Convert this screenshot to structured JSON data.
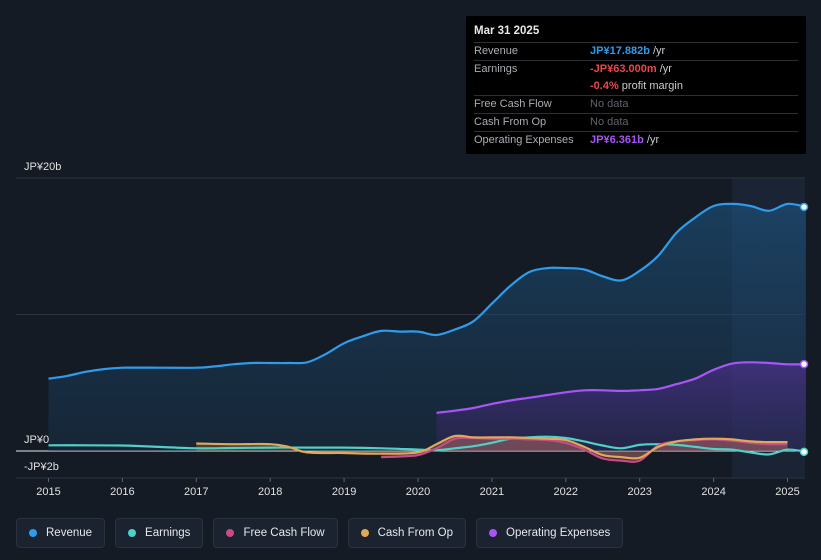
{
  "tooltip": {
    "date": "Mar 31 2025",
    "rows": [
      {
        "label": "Revenue",
        "value": "JP¥17.882b",
        "unit": " /yr",
        "color": "#2f9bea"
      },
      {
        "label": "Earnings",
        "value": "-JP¥63.000m",
        "unit": " /yr",
        "color": "#e8484a"
      },
      {
        "label": "",
        "value": "-0.4%",
        "unit": " profit margin",
        "color": "#e8484a"
      },
      {
        "label": "Free Cash Flow",
        "value": "No data",
        "unit": "",
        "color": ""
      },
      {
        "label": "Cash From Op",
        "value": "No data",
        "unit": "",
        "color": ""
      },
      {
        "label": "Operating Expenses",
        "value": "JP¥6.361b",
        "unit": " /yr",
        "color": "#a855f7"
      }
    ]
  },
  "legend": [
    {
      "label": "Revenue",
      "color": "#2f9bea"
    },
    {
      "label": "Earnings",
      "color": "#4fd1c5"
    },
    {
      "label": "Free Cash Flow",
      "color": "#c74b86"
    },
    {
      "label": "Cash From Op",
      "color": "#e0a95a"
    },
    {
      "label": "Operating Expenses",
      "color": "#a855f7"
    }
  ],
  "chart_data": {
    "type": "area",
    "title": "",
    "xlabel": "",
    "ylabel": "",
    "y_axis_labels": [
      {
        "label": "JP¥20b",
        "value": 20
      },
      {
        "label": "JP¥0",
        "value": 0
      },
      {
        "label": "-JP¥2b",
        "value": -2
      }
    ],
    "ylim": [
      -2,
      20
    ],
    "xlim": [
      2014.9,
      2025.25
    ],
    "x_ticks": [
      2015,
      2016,
      2017,
      2018,
      2019,
      2020,
      2021,
      2022,
      2023,
      2024,
      2025
    ],
    "forecast_band_start": 2024.25,
    "units": "JP¥ billions",
    "series": [
      {
        "name": "Revenue",
        "color": "#2f9bea",
        "fill": true,
        "points": [
          [
            2015.0,
            5.3
          ],
          [
            2015.25,
            5.5
          ],
          [
            2015.5,
            5.8
          ],
          [
            2015.75,
            6.0
          ],
          [
            2016.0,
            6.1
          ],
          [
            2016.5,
            6.1
          ],
          [
            2017.0,
            6.1
          ],
          [
            2017.25,
            6.2
          ],
          [
            2017.5,
            6.35
          ],
          [
            2017.75,
            6.45
          ],
          [
            2018.0,
            6.45
          ],
          [
            2018.25,
            6.45
          ],
          [
            2018.5,
            6.5
          ],
          [
            2018.75,
            7.1
          ],
          [
            2019.0,
            7.9
          ],
          [
            2019.25,
            8.4
          ],
          [
            2019.5,
            8.8
          ],
          [
            2019.75,
            8.75
          ],
          [
            2020.0,
            8.75
          ],
          [
            2020.25,
            8.5
          ],
          [
            2020.5,
            8.9
          ],
          [
            2020.75,
            9.5
          ],
          [
            2021.0,
            10.8
          ],
          [
            2021.25,
            12.1
          ],
          [
            2021.5,
            13.1
          ],
          [
            2021.75,
            13.4
          ],
          [
            2022.0,
            13.4
          ],
          [
            2022.25,
            13.3
          ],
          [
            2022.5,
            12.8
          ],
          [
            2022.75,
            12.5
          ],
          [
            2023.0,
            13.2
          ],
          [
            2023.25,
            14.3
          ],
          [
            2023.5,
            16.0
          ],
          [
            2023.75,
            17.1
          ],
          [
            2024.0,
            17.95
          ],
          [
            2024.25,
            18.1
          ],
          [
            2024.5,
            17.95
          ],
          [
            2024.75,
            17.6
          ],
          [
            2025.0,
            18.1
          ],
          [
            2025.25,
            17.88
          ]
        ]
      },
      {
        "name": "Operating Expenses",
        "color": "#a855f7",
        "fill": true,
        "points": [
          [
            2020.25,
            2.8
          ],
          [
            2020.5,
            2.95
          ],
          [
            2020.75,
            3.15
          ],
          [
            2021.0,
            3.45
          ],
          [
            2021.25,
            3.7
          ],
          [
            2021.5,
            3.9
          ],
          [
            2021.75,
            4.1
          ],
          [
            2022.0,
            4.3
          ],
          [
            2022.25,
            4.45
          ],
          [
            2022.5,
            4.45
          ],
          [
            2022.75,
            4.4
          ],
          [
            2023.0,
            4.45
          ],
          [
            2023.25,
            4.55
          ],
          [
            2023.5,
            4.9
          ],
          [
            2023.75,
            5.3
          ],
          [
            2024.0,
            5.95
          ],
          [
            2024.25,
            6.4
          ],
          [
            2024.5,
            6.5
          ],
          [
            2024.75,
            6.45
          ],
          [
            2025.0,
            6.35
          ],
          [
            2025.25,
            6.36
          ]
        ]
      },
      {
        "name": "Earnings",
        "color": "#4fd1c5",
        "fill": false,
        "points": [
          [
            2015.0,
            0.42
          ],
          [
            2015.5,
            0.42
          ],
          [
            2016.0,
            0.4
          ],
          [
            2016.5,
            0.3
          ],
          [
            2017.0,
            0.2
          ],
          [
            2017.5,
            0.22
          ],
          [
            2018.0,
            0.25
          ],
          [
            2018.5,
            0.25
          ],
          [
            2019.0,
            0.25
          ],
          [
            2019.5,
            0.2
          ],
          [
            2020.0,
            0.1
          ],
          [
            2020.25,
            0.05
          ],
          [
            2020.5,
            0.2
          ],
          [
            2020.75,
            0.35
          ],
          [
            2021.0,
            0.6
          ],
          [
            2021.25,
            0.9
          ],
          [
            2021.5,
            1.0
          ],
          [
            2021.75,
            1.05
          ],
          [
            2022.0,
            0.95
          ],
          [
            2022.25,
            0.7
          ],
          [
            2022.5,
            0.4
          ],
          [
            2022.75,
            0.2
          ],
          [
            2023.0,
            0.45
          ],
          [
            2023.25,
            0.5
          ],
          [
            2023.5,
            0.45
          ],
          [
            2023.75,
            0.3
          ],
          [
            2024.0,
            0.15
          ],
          [
            2024.25,
            0.1
          ],
          [
            2024.5,
            -0.1
          ],
          [
            2024.75,
            -0.25
          ],
          [
            2025.0,
            0.1
          ],
          [
            2025.25,
            -0.06
          ]
        ]
      },
      {
        "name": "Free Cash Flow",
        "color": "#c74b86",
        "fill": true,
        "points": [
          [
            2019.5,
            -0.45
          ],
          [
            2019.75,
            -0.4
          ],
          [
            2020.0,
            -0.3
          ],
          [
            2020.25,
            0.2
          ],
          [
            2020.5,
            0.9
          ],
          [
            2020.75,
            0.95
          ],
          [
            2021.0,
            0.9
          ],
          [
            2021.25,
            0.9
          ],
          [
            2021.5,
            0.85
          ],
          [
            2021.75,
            0.8
          ],
          [
            2022.0,
            0.6
          ],
          [
            2022.25,
            0.1
          ],
          [
            2022.5,
            -0.55
          ],
          [
            2022.75,
            -0.7
          ],
          [
            2023.0,
            -0.7
          ],
          [
            2023.25,
            0.4
          ],
          [
            2023.5,
            0.7
          ],
          [
            2023.75,
            0.8
          ],
          [
            2024.0,
            0.85
          ],
          [
            2024.25,
            0.75
          ],
          [
            2024.5,
            0.6
          ],
          [
            2024.75,
            0.5
          ],
          [
            2025.0,
            0.5
          ]
        ]
      },
      {
        "name": "Cash From Op",
        "color": "#e0a95a",
        "fill": true,
        "points": [
          [
            2017.0,
            0.55
          ],
          [
            2017.5,
            0.5
          ],
          [
            2018.0,
            0.5
          ],
          [
            2018.25,
            0.3
          ],
          [
            2018.5,
            -0.1
          ],
          [
            2019.0,
            -0.15
          ],
          [
            2019.5,
            -0.2
          ],
          [
            2020.0,
            -0.1
          ],
          [
            2020.25,
            0.5
          ],
          [
            2020.5,
            1.1
          ],
          [
            2020.75,
            1.0
          ],
          [
            2021.0,
            1.0
          ],
          [
            2021.25,
            1.0
          ],
          [
            2021.5,
            0.95
          ],
          [
            2021.75,
            0.9
          ],
          [
            2022.0,
            0.8
          ],
          [
            2022.25,
            0.3
          ],
          [
            2022.5,
            -0.3
          ],
          [
            2022.75,
            -0.45
          ],
          [
            2023.0,
            -0.5
          ],
          [
            2023.25,
            0.3
          ],
          [
            2023.5,
            0.7
          ],
          [
            2023.75,
            0.85
          ],
          [
            2024.0,
            0.9
          ],
          [
            2024.25,
            0.85
          ],
          [
            2024.5,
            0.7
          ],
          [
            2024.75,
            0.65
          ],
          [
            2025.0,
            0.65
          ]
        ]
      }
    ]
  }
}
